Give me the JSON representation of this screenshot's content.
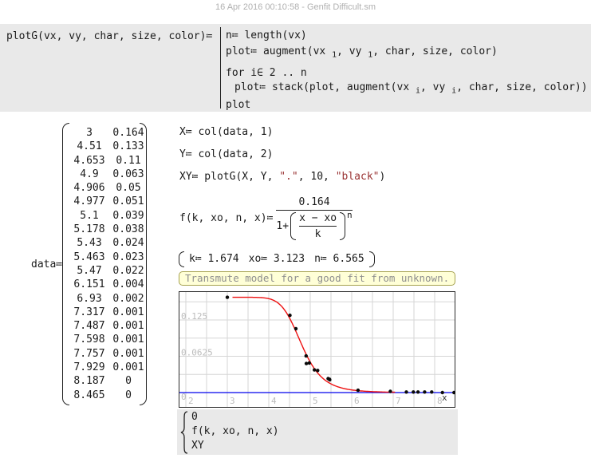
{
  "page": {
    "title": "16 Apr 2016 00:10:58 - Genfit Difficult.sm"
  },
  "func": {
    "lhs": "plotG(vx, vy, char, size, color)≔",
    "l1": "n≔ length(vx)",
    "l2a": "plot≔ augment(vx ",
    "l2s1": "1",
    "l2b": ", vy ",
    "l2s2": "1",
    "l2c": ", char, size, color)",
    "l3": "for i∈ 2 .. n",
    "l4a": "plot≔ stack(plot, augment(vx ",
    "l4s1": "i",
    "l4b": ", vy ",
    "l4s2": "i",
    "l4c": ", char, size, color))",
    "l5": "plot"
  },
  "data_matrix": {
    "label": "data≔",
    "rows": [
      [
        "3",
        "0.164"
      ],
      [
        "4.51",
        "0.133"
      ],
      [
        "4.653",
        "0.11"
      ],
      [
        "4.9",
        "0.063"
      ],
      [
        "4.906",
        "0.05"
      ],
      [
        "4.977",
        "0.051"
      ],
      [
        "5.1",
        "0.039"
      ],
      [
        "5.178",
        "0.038"
      ],
      [
        "5.43",
        "0.024"
      ],
      [
        "5.463",
        "0.023"
      ],
      [
        "5.47",
        "0.022"
      ],
      [
        "6.151",
        "0.004"
      ],
      [
        "6.93",
        "0.002"
      ],
      [
        "7.317",
        "0.001"
      ],
      [
        "7.487",
        "0.001"
      ],
      [
        "7.598",
        "0.001"
      ],
      [
        "7.757",
        "0.001"
      ],
      [
        "7.929",
        "0.001"
      ],
      [
        "8.187",
        "0"
      ],
      [
        "8.465",
        "0"
      ]
    ]
  },
  "defs": {
    "x_def": "X≔ col(data, 1)",
    "y_def": "Y≔ col(data, 2)",
    "xy_pre": "XY≔ plotG(X, Y, ",
    "xy_str1": "\".\"",
    "xy_mid": ", 10, ",
    "xy_str2": "\"black\"",
    "xy_post": ")"
  },
  "formula": {
    "lhs": "f(k, xo, n, x)≔",
    "numerator": "0.164",
    "den_prefix": "1+",
    "inner_num": "x − xo",
    "inner_den": "k",
    "exponent": "n"
  },
  "guess": {
    "k": "k≔ 1.674",
    "xo": "xo≔ 3.123",
    "n": "n≔ 6.565"
  },
  "note": {
    "text": "Transmute model for a good fit from unknown."
  },
  "legend": {
    "items": [
      "0",
      "f(k, xo, n, x)",
      "XY"
    ]
  },
  "chart_data": {
    "type": "scatter",
    "title": "",
    "xlabel": "x",
    "ylabel": "",
    "x_range": [
      1.83,
      8.48
    ],
    "y_range": [
      -0.0235,
      0.1745
    ],
    "x_ticks": [
      2,
      3,
      4,
      5,
      6,
      7,
      8
    ],
    "y_ticks": [
      {
        "v": 0.125,
        "label": "0.125"
      },
      {
        "v": 0.0625,
        "label": "0.0625"
      },
      {
        "v": 0,
        "label": "0"
      }
    ],
    "grid": {
      "x_step": 0.5,
      "y_step": 0.03125,
      "color": "#d6d6d6"
    },
    "axis_label_color": "#bcbcbc",
    "border_color": "#2b2b2b",
    "series": [
      {
        "name": "0",
        "type": "constant",
        "y": 0,
        "color": "#0000ee"
      },
      {
        "name": "f(k, xo, n, x)",
        "type": "function",
        "amp": 0.164,
        "k": 1.674,
        "xo": 3.123,
        "n": 6.565,
        "x_start": 3.125,
        "x_end": 7.06,
        "color": "#ee1111"
      },
      {
        "name": "XY",
        "type": "points",
        "color": "#0a0a0a",
        "marker_radius": 2.2,
        "points": [
          [
            3,
            0.164
          ],
          [
            4.51,
            0.133
          ],
          [
            4.653,
            0.11
          ],
          [
            4.9,
            0.063
          ],
          [
            4.906,
            0.05
          ],
          [
            4.977,
            0.051
          ],
          [
            5.1,
            0.039
          ],
          [
            5.178,
            0.038
          ],
          [
            5.43,
            0.024
          ],
          [
            5.463,
            0.023
          ],
          [
            5.47,
            0.022
          ],
          [
            6.151,
            0.004
          ],
          [
            6.93,
            0.002
          ],
          [
            7.317,
            0.001
          ],
          [
            7.487,
            0.001
          ],
          [
            7.598,
            0.001
          ],
          [
            7.757,
            0.001
          ],
          [
            7.929,
            0.001
          ],
          [
            8.187,
            0
          ],
          [
            8.465,
            0
          ]
        ]
      }
    ]
  }
}
